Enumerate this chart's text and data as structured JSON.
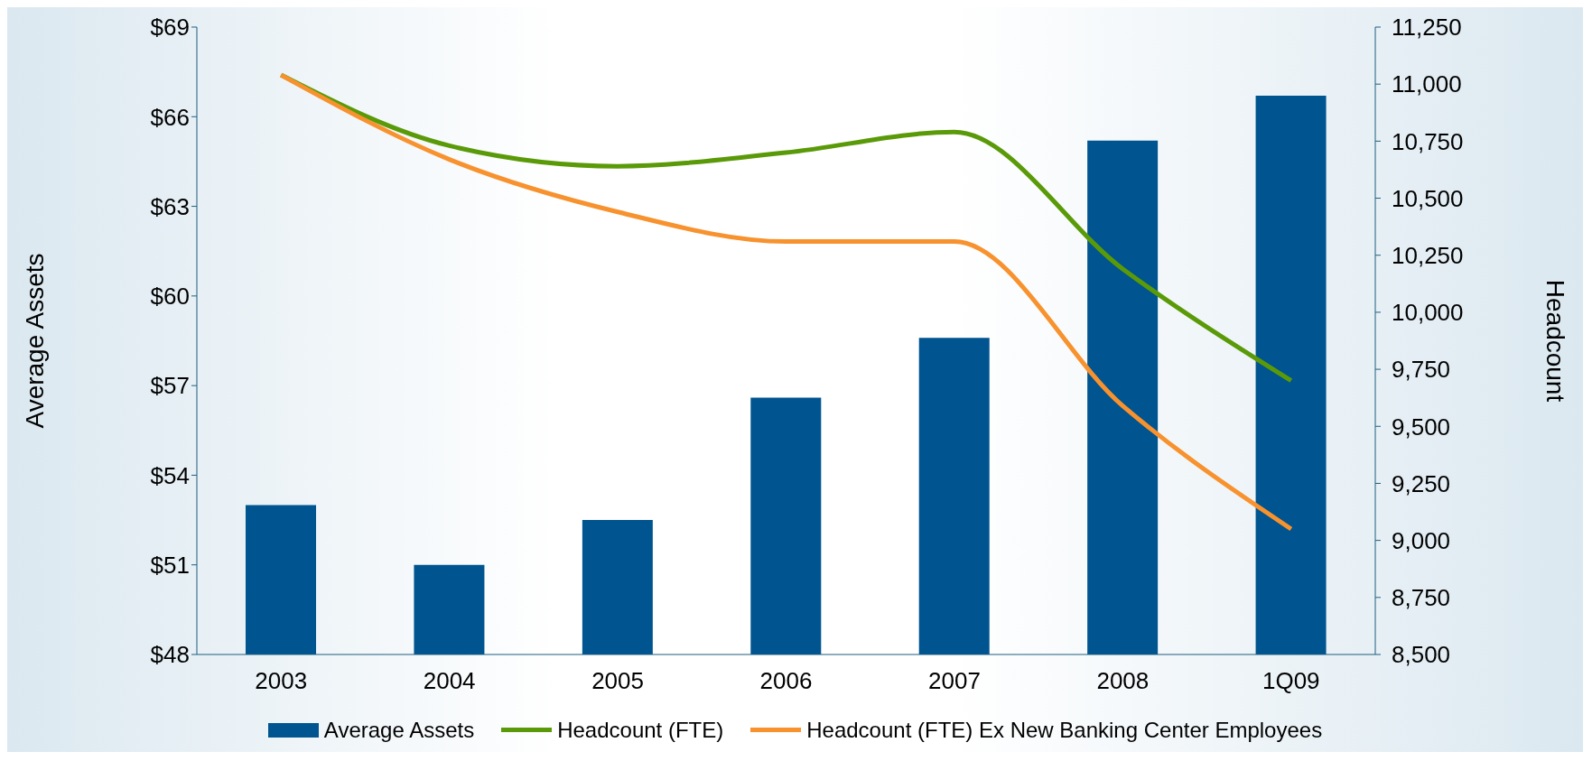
{
  "chart_data": {
    "type": "bar",
    "categories": [
      "2003",
      "2004",
      "2005",
      "2006",
      "2007",
      "2008",
      "1Q09"
    ],
    "series": [
      {
        "name": "Average Assets",
        "color": "#00548f",
        "values": [
          53,
          51,
          52.5,
          56.6,
          58.6,
          65.2,
          66.7
        ]
      },
      {
        "name": "Headcount (FTE)",
        "type": "line",
        "axis": "y2",
        "color": "#5a9a08",
        "values": [
          11040,
          10730,
          10640,
          10700,
          10790,
          10190,
          9700
        ]
      },
      {
        "name": "Headcount (FTE) Ex New Banking Center Employees",
        "type": "line",
        "axis": "y2",
        "color": "#f7922e",
        "values": [
          11040,
          10670,
          10440,
          10310,
          10310,
          9590,
          9050
        ]
      }
    ],
    "ylabel": "Average Assets",
    "y2label": "Headcount",
    "ylim": [
      48,
      69
    ],
    "yticks": [
      {
        "value": 48,
        "label": "$48"
      },
      {
        "value": 51,
        "label": "$51"
      },
      {
        "value": 54,
        "label": "$54"
      },
      {
        "value": 57,
        "label": "$57"
      },
      {
        "value": 60,
        "label": "$60"
      },
      {
        "value": 63,
        "label": "$63"
      },
      {
        "value": 66,
        "label": "$66"
      },
      {
        "value": 69,
        "label": "$69"
      }
    ],
    "y2lim": [
      8500,
      11250
    ],
    "y2ticks": [
      {
        "value": 8500,
        "label": "8,500"
      },
      {
        "value": 8750,
        "label": "8,750"
      },
      {
        "value": 9000,
        "label": "9,000"
      },
      {
        "value": 9250,
        "label": "9,250"
      },
      {
        "value": 9500,
        "label": "9,500"
      },
      {
        "value": 9750,
        "label": "9,750"
      },
      {
        "value": 10000,
        "label": "10,000"
      },
      {
        "value": 10250,
        "label": "10,250"
      },
      {
        "value": 10500,
        "label": "10,500"
      },
      {
        "value": 10750,
        "label": "10,750"
      },
      {
        "value": 11000,
        "label": "11,000"
      },
      {
        "value": 11250,
        "label": "11,250"
      }
    ],
    "legend": "bottom",
    "marker": "none",
    "grid": false
  }
}
